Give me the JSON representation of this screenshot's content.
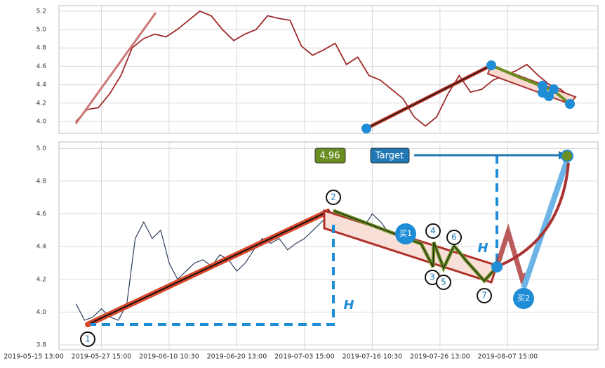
{
  "chart_data": [
    {
      "type": "line",
      "color": "#9e2a2b",
      "grid": true,
      "values": [
        4.0,
        4.13,
        4.15,
        4.3,
        4.5,
        4.8,
        4.9,
        4.95,
        4.92,
        5.0,
        5.1,
        5.2,
        5.15,
        5.0,
        4.88,
        4.95,
        5.0,
        5.15,
        5.12,
        5.1,
        4.82,
        4.72,
        4.78,
        4.85,
        4.62,
        4.7,
        4.5,
        4.45,
        4.35,
        4.25,
        4.05,
        3.95,
        4.05,
        4.3,
        4.5,
        4.32,
        4.35,
        4.45,
        4.5,
        4.55,
        4.62,
        4.5,
        4.4,
        4.35,
        4.25
      ],
      "ylim": [
        3.87,
        5.26
      ],
      "yticks": [
        {
          "value": 4.0,
          "label": "4.0"
        },
        4.2,
        4.4,
        4.6,
        4.8,
        {
          "value": 5.0,
          "label": "5.0"
        },
        5.2
      ]
    },
    {
      "type": "line",
      "color": "#2c3e60",
      "grid": true,
      "categories": [
        "2019-05-15 13:00",
        null,
        null,
        null,
        null,
        null,
        null,
        null,
        "2019-05-27 15:00",
        null,
        null,
        null,
        null,
        null,
        null,
        null,
        "2019-06-10 10:30",
        null,
        null,
        null,
        null,
        null,
        null,
        null,
        "2019-06-20 13:00",
        null,
        null,
        null,
        null,
        null,
        null,
        null,
        "2019-07-03 15:00",
        null,
        null,
        null,
        null,
        null,
        null,
        null,
        "2019-07-16 10:30",
        null,
        null,
        null,
        null,
        null,
        null,
        null,
        "2019-07-26 13:00",
        null,
        null,
        null,
        null,
        null,
        null,
        null,
        "2019-08-07 15:00"
      ],
      "values": [
        null,
        null,
        null,
        null,
        null,
        4.05,
        3.95,
        3.97,
        4.02,
        3.97,
        3.95,
        4.05,
        4.45,
        4.55,
        4.45,
        4.5,
        4.3,
        4.2,
        4.25,
        4.3,
        4.32,
        4.28,
        4.35,
        4.32,
        4.25,
        4.3,
        4.38,
        4.45,
        4.42,
        4.45,
        4.38,
        4.42,
        4.45,
        4.5,
        4.55,
        4.6,
        4.55,
        4.52,
        4.5,
        4.52,
        4.6,
        4.55,
        4.48,
        4.45,
        4.47,
        4.42,
        4.4,
        4.32,
        4.35,
        4.3,
        4.33,
        4.3,
        4.27,
        4.22,
        4.25,
        null,
        null
      ],
      "ylim": [
        3.77,
        5.04
      ],
      "yticks": [
        3.8,
        {
          "value": 4.0,
          "label": "4.0"
        },
        4.2,
        4.4,
        4.6,
        4.8,
        {
          "value": 5.0,
          "label": "5.0"
        }
      ]
    }
  ],
  "annotations": {
    "points": [
      "1",
      "2",
      "3",
      "4",
      "5",
      "6",
      "7"
    ],
    "h": "H",
    "price_label": "4.96",
    "target": "Target",
    "buy1": "买1",
    "buy2": "买2"
  }
}
